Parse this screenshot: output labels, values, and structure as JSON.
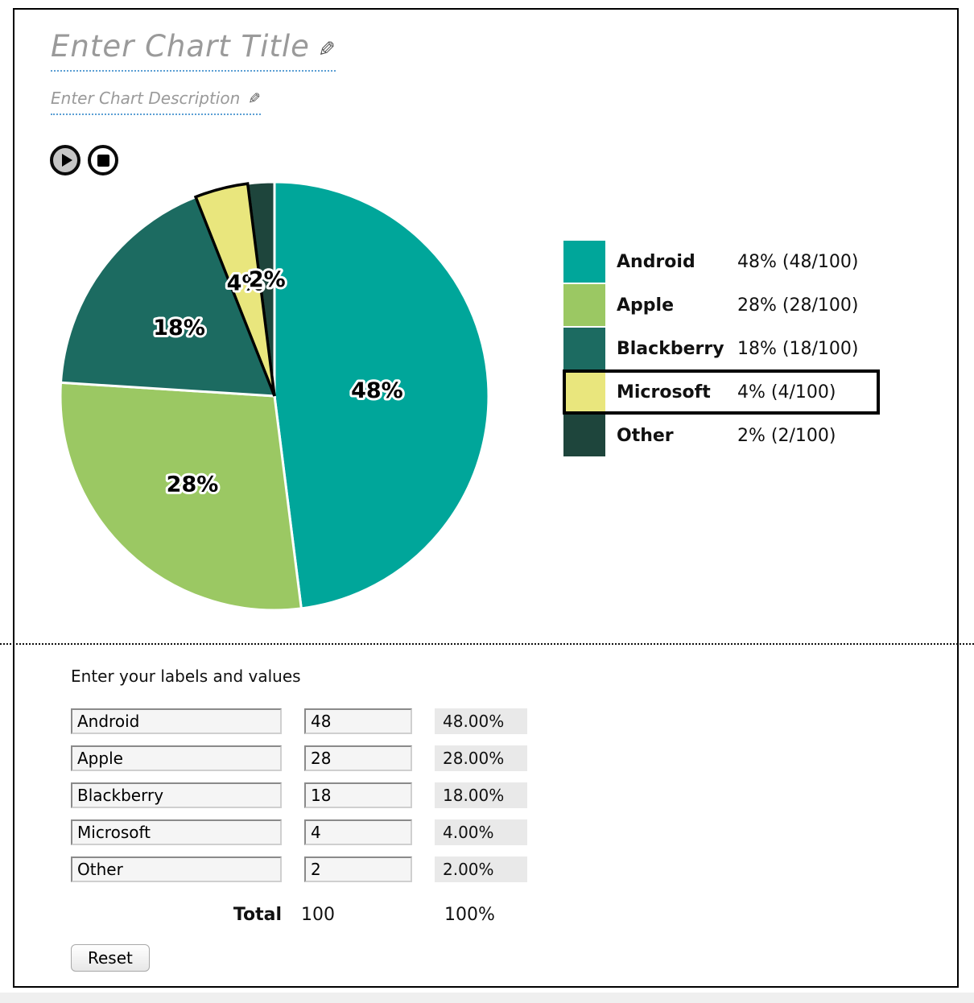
{
  "page": {
    "title_placeholder": "Enter Chart Title",
    "description_placeholder": "Enter Chart Description"
  },
  "chart_data": {
    "type": "pie",
    "title": "",
    "start_angle_deg": 0,
    "direction": "clockwise",
    "legend_position": "right",
    "stroke": "#ffffff",
    "highlight_stroke": "#000000",
    "label_radius": [
      0.48,
      0.56,
      0.55,
      0.55,
      0.55
    ],
    "total": 100,
    "series": [
      {
        "label": "Android",
        "value": 48,
        "slice_label": "48%",
        "legend_value": "48% (48/100)",
        "color": "#00A69A",
        "highlight": false
      },
      {
        "label": "Apple",
        "value": 28,
        "slice_label": "28%",
        "legend_value": "28% (28/100)",
        "color": "#9BC863",
        "highlight": false
      },
      {
        "label": "Blackberry",
        "value": 18,
        "slice_label": "18%",
        "legend_value": "18% (18/100)",
        "color": "#1C6B61",
        "highlight": false
      },
      {
        "label": "Microsoft",
        "value": 4,
        "slice_label": "4%",
        "legend_value": "4% (4/100)",
        "color": "#E9E67D",
        "highlight": true
      },
      {
        "label": "Other",
        "value": 2,
        "slice_label": "2%",
        "legend_value": "2% (2/100)",
        "color": "#1E453C",
        "highlight": false
      }
    ]
  },
  "table": {
    "heading": "Enter your labels and values",
    "rows": [
      {
        "label": "Android",
        "value": "48",
        "percent": "48.00%"
      },
      {
        "label": "Apple",
        "value": "28",
        "percent": "28.00%"
      },
      {
        "label": "Blackberry",
        "value": "18",
        "percent": "18.00%"
      },
      {
        "label": "Microsoft",
        "value": "4",
        "percent": "4.00%"
      },
      {
        "label": "Other",
        "value": "2",
        "percent": "2.00%"
      }
    ],
    "total_label": "Total",
    "total_value": "100",
    "total_percent": "100%",
    "reset_label": "Reset"
  }
}
